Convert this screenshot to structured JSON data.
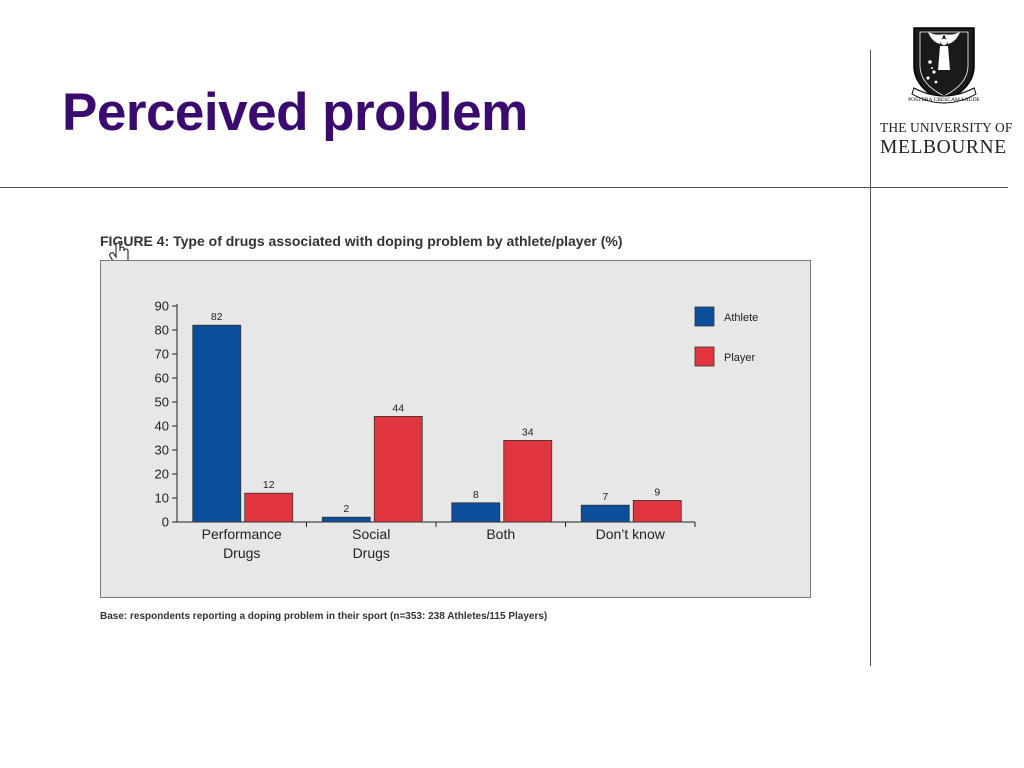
{
  "slide": {
    "title": "Perceived problem",
    "logo": {
      "line1": "THE UNIVERSITY OF",
      "line2": "MELBOURNE",
      "motto": "POSTERA CRESCAM LAUDE"
    }
  },
  "colors": {
    "title": "#3a0a6e",
    "athlete": "#0b4f9c",
    "player": "#e0353e",
    "panel": "#e7e7e7"
  },
  "chart_data": {
    "type": "bar",
    "title": "FIGURE 4: Type of drugs associated with doping problem by athlete/player (%)",
    "categories": [
      [
        "Performance",
        "Drugs"
      ],
      [
        "Social",
        "Drugs"
      ],
      [
        "Both"
      ],
      [
        "Don’t know"
      ]
    ],
    "series": [
      {
        "name": "Athlete",
        "color": "#0b4f9c",
        "values": [
          82,
          2,
          8,
          7
        ]
      },
      {
        "name": "Player",
        "color": "#e0353e",
        "values": [
          12,
          44,
          34,
          9
        ]
      }
    ],
    "ylim": [
      0,
      90
    ],
    "yticks": [
      0,
      10,
      20,
      30,
      40,
      50,
      60,
      70,
      80,
      90
    ],
    "data_labels": true,
    "grid": false,
    "legend_position": "top-right",
    "note": "Base: respondents reporting a doping problem in their sport (n=353: 238 Athletes/115 Players)"
  }
}
